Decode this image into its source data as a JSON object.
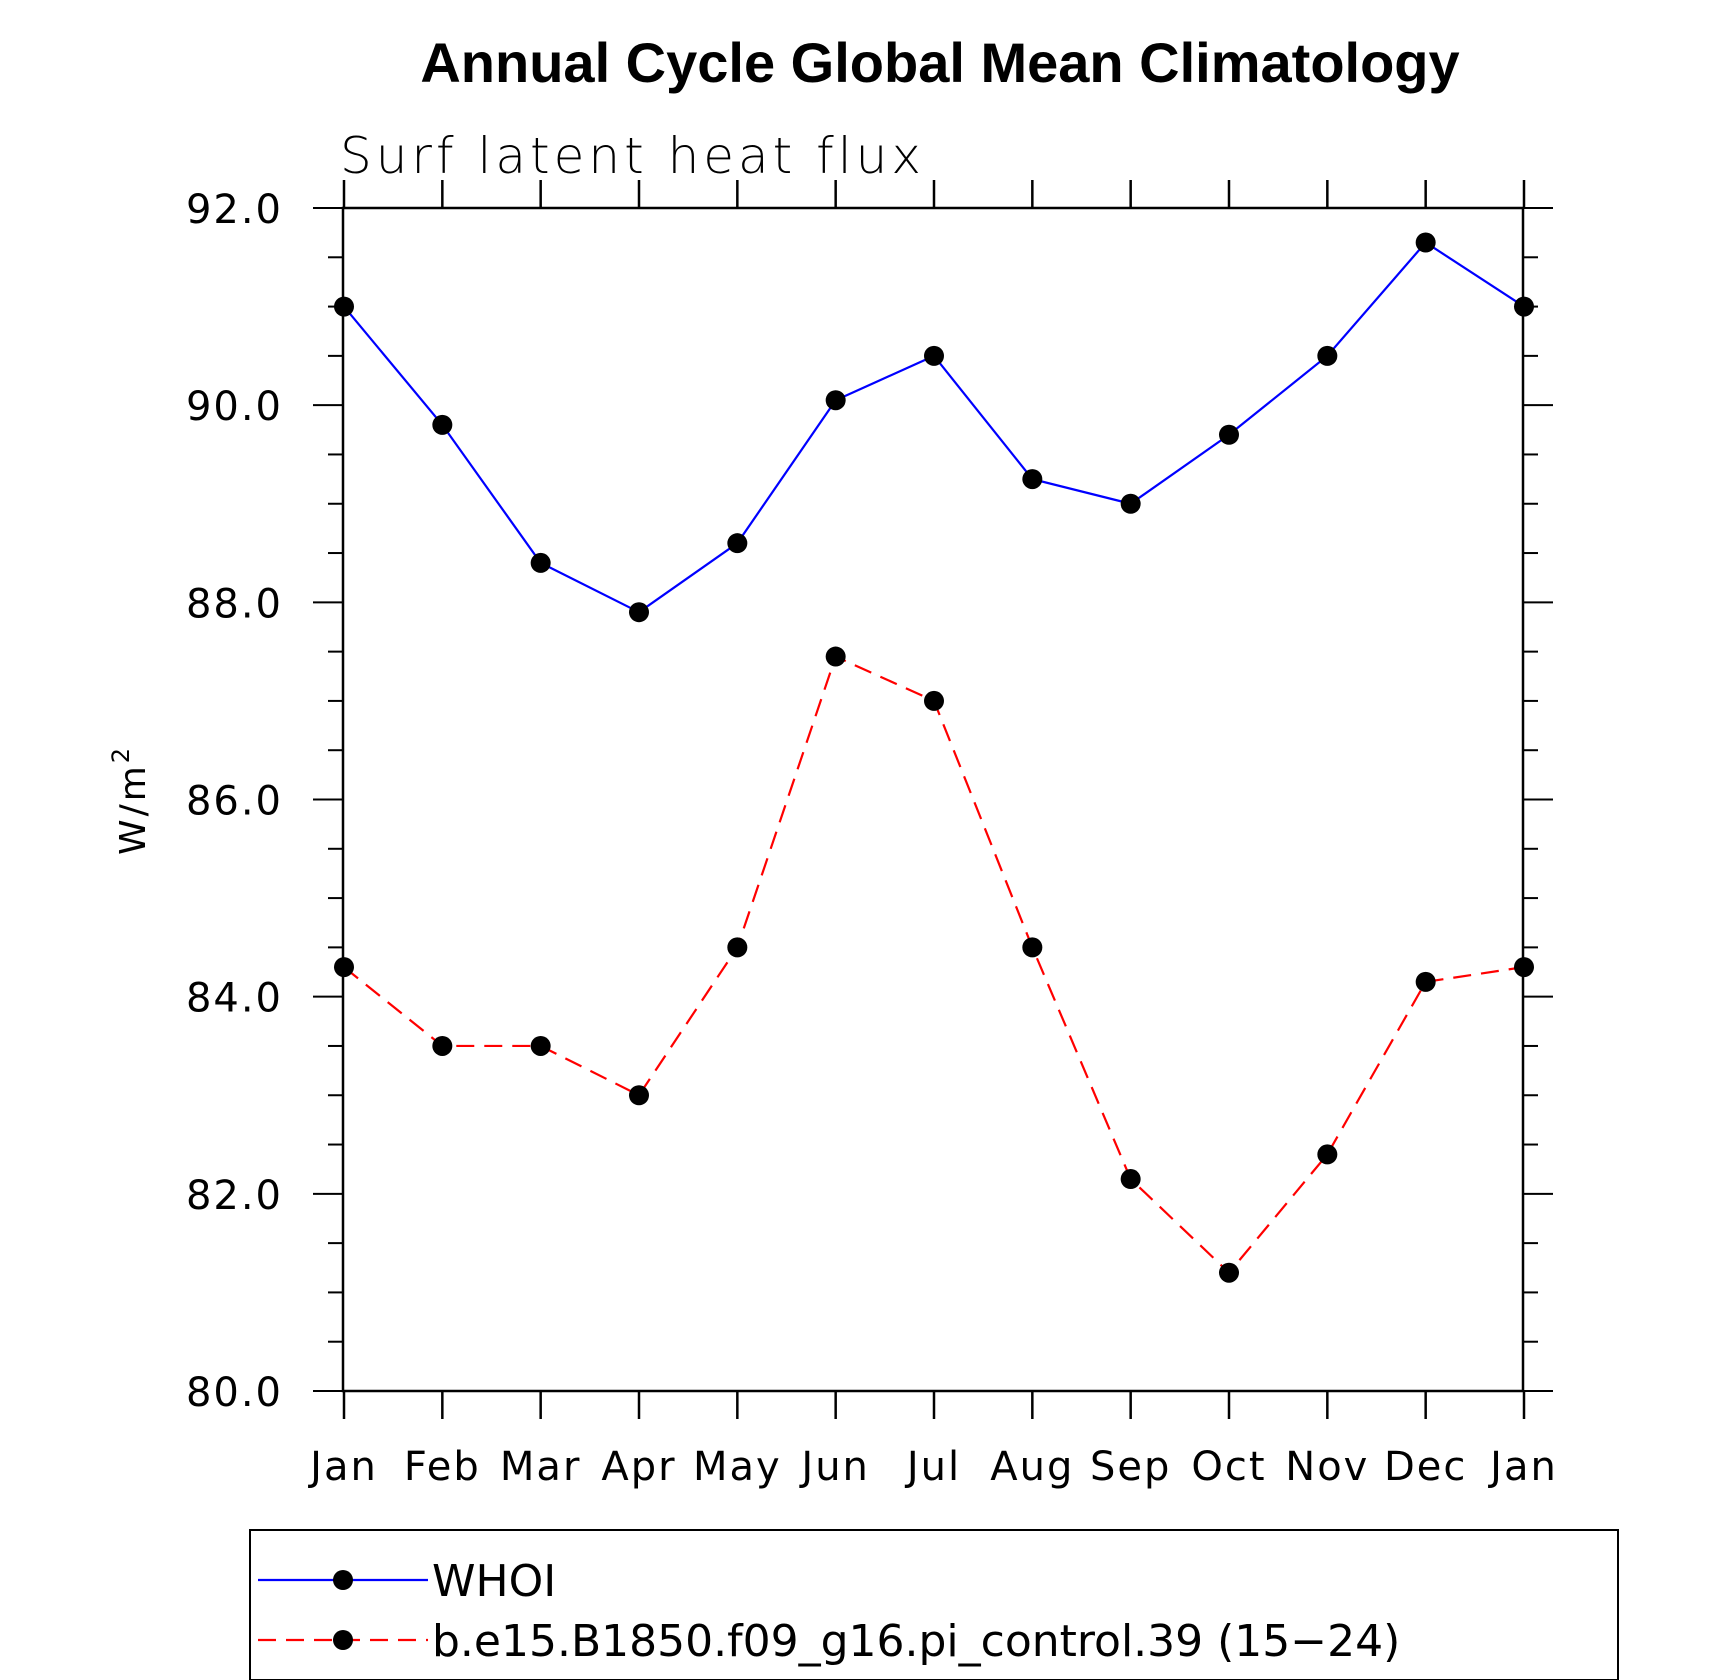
{
  "chart_data": {
    "type": "line",
    "title": "Annual Cycle Global Mean Climatology",
    "subtitle": "Surf latent heat flux",
    "xlabel": "",
    "ylabel": "W/m",
    "ylabel_superscript": "2",
    "categories": [
      "Jan",
      "Feb",
      "Mar",
      "Apr",
      "May",
      "Jun",
      "Jul",
      "Aug",
      "Sep",
      "Oct",
      "Nov",
      "Dec",
      "Jan"
    ],
    "ylim": [
      80.0,
      92.0
    ],
    "yticks": [
      "80.0",
      "82.0",
      "84.0",
      "86.0",
      "88.0",
      "90.0",
      "92.0"
    ],
    "grid": false,
    "legend_position": "bottom",
    "series": [
      {
        "name": "WHOI",
        "color": "#0000ff",
        "dash": "solid",
        "values": [
          91.0,
          89.8,
          88.4,
          87.9,
          88.6,
          90.05,
          90.5,
          89.25,
          89.0,
          89.7,
          90.5,
          91.65,
          91.0
        ]
      },
      {
        "name": "b.e15.B1850.f09_g16.pi_control.39 (15−24)",
        "color": "#ff0000",
        "dash": "dashed",
        "values": [
          84.3,
          83.5,
          83.5,
          83.0,
          84.5,
          87.45,
          87.0,
          84.5,
          82.15,
          81.2,
          82.4,
          84.15,
          84.3
        ]
      }
    ]
  }
}
